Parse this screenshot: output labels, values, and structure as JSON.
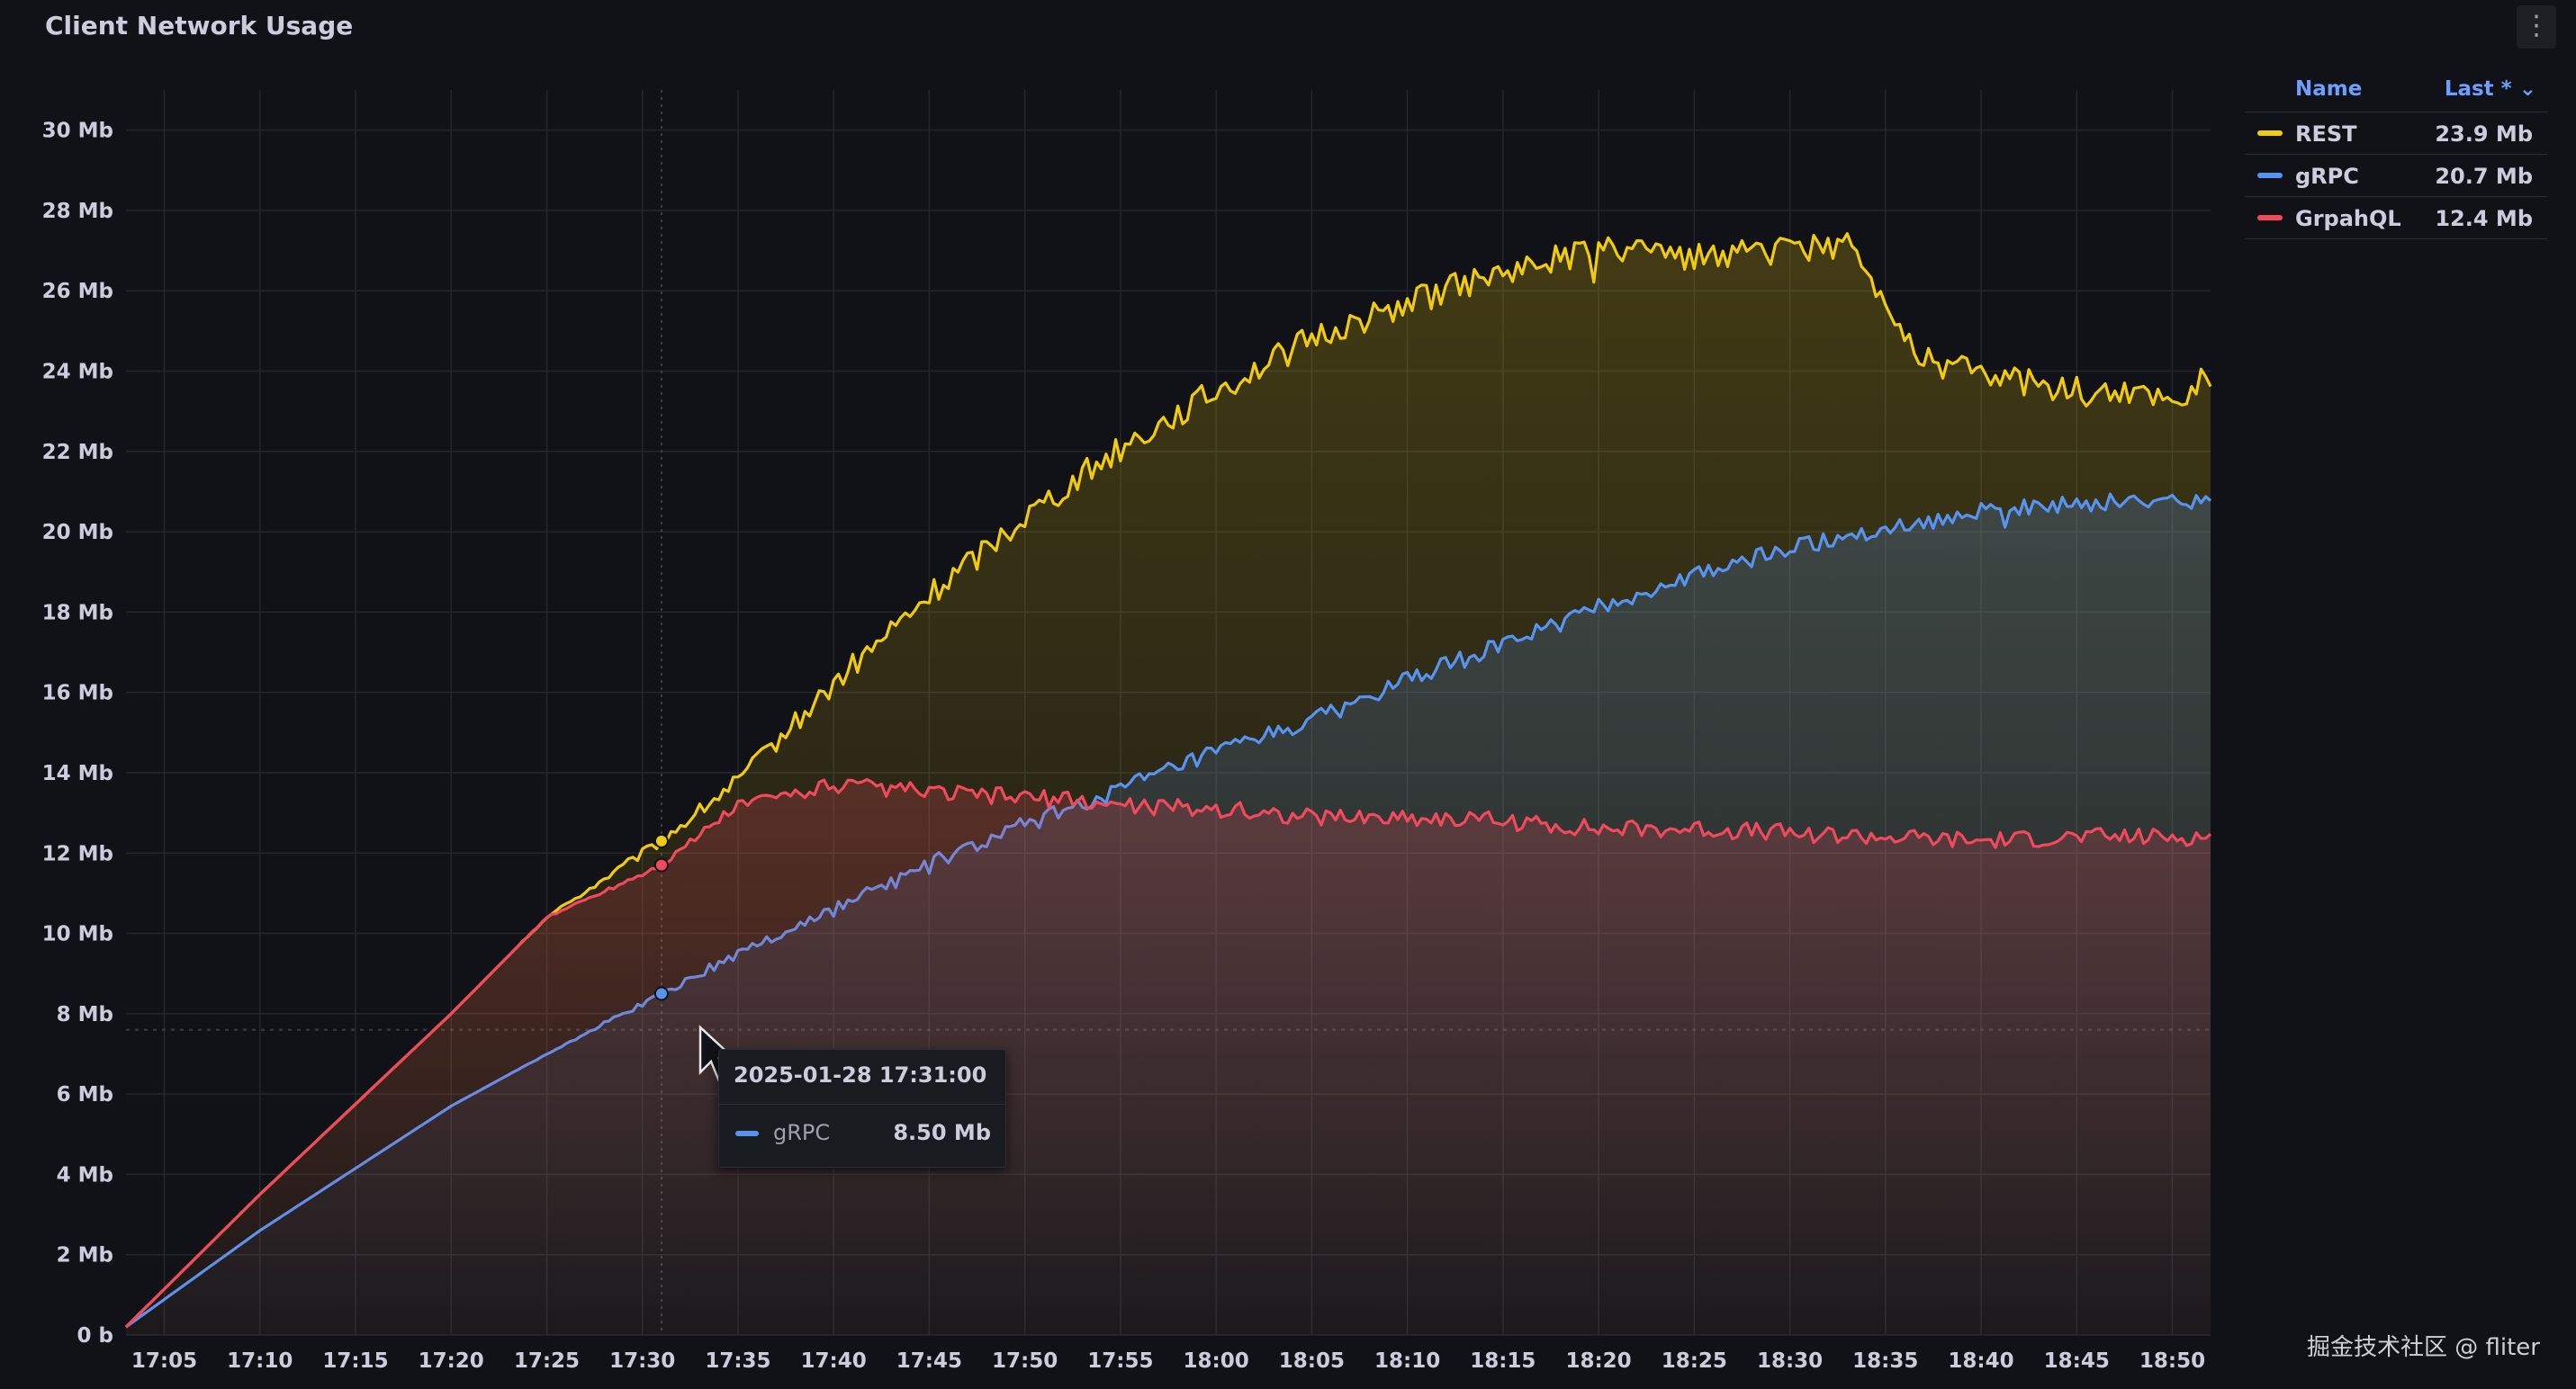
{
  "panel": {
    "title": "Client Network Usage",
    "menu_icon": "kebab-menu-icon",
    "menu_glyph": "⋮"
  },
  "legend": {
    "header_name": "Name",
    "header_last": "Last * ⌄",
    "items": [
      {
        "name": "REST",
        "value": "23.9 Mb",
        "color": "#f2cc0c"
      },
      {
        "name": "gRPC",
        "value": "20.7 Mb",
        "color": "#5794f2"
      },
      {
        "name": "GrpahQL",
        "value": "12.4 Mb",
        "color": "#f2495c"
      }
    ]
  },
  "tooltip": {
    "time": "2025-01-28 17:31:00",
    "series": "gRPC",
    "value": "8.50 Mb",
    "color": "#5794f2"
  },
  "watermark": "掘金技术社区 @ fliter",
  "chart_data": {
    "type": "line",
    "title": "Client Network Usage",
    "x_unit": "time (HH:MM), 2025-01-28",
    "x_ticks": [
      "17:05",
      "17:10",
      "17:15",
      "17:20",
      "17:25",
      "17:30",
      "17:35",
      "17:40",
      "17:45",
      "17:50",
      "17:55",
      "18:00",
      "18:05",
      "18:10",
      "18:15",
      "18:20",
      "18:25",
      "18:30",
      "18:35",
      "18:40",
      "18:45",
      "18:50"
    ],
    "xlim": [
      "17:03",
      "18:52"
    ],
    "y_ticks": [
      "0 b",
      "2 Mb",
      "4 Mb",
      "6 Mb",
      "8 Mb",
      "10 Mb",
      "12 Mb",
      "14 Mb",
      "16 Mb",
      "18 Mb",
      "20 Mb",
      "22 Mb",
      "24 Mb",
      "26 Mb",
      "28 Mb",
      "30 Mb"
    ],
    "ylim": [
      0,
      31
    ],
    "y_unit": "Mb",
    "grid": true,
    "legend_position": "right",
    "hover_time": "17:31",
    "threshold_y": 7.6,
    "series": [
      {
        "name": "REST",
        "color": "#f2cc0c",
        "x": [
          "17:03",
          "17:10",
          "17:20",
          "17:25",
          "17:31",
          "17:35",
          "17:40",
          "17:45",
          "17:50",
          "17:55",
          "18:00",
          "18:05",
          "18:10",
          "18:15",
          "18:20",
          "18:25",
          "18:30",
          "18:33",
          "18:35",
          "18:37",
          "18:40",
          "18:45",
          "18:50",
          "18:52"
        ],
        "values": [
          0.2,
          3.5,
          8.0,
          10.4,
          12.3,
          13.8,
          16.2,
          18.4,
          20.4,
          22.1,
          23.5,
          24.8,
          25.7,
          26.5,
          27.0,
          26.8,
          27.0,
          27.2,
          25.8,
          24.3,
          23.9,
          23.5,
          23.3,
          23.9
        ]
      },
      {
        "name": "gRPC",
        "color": "#5794f2",
        "x": [
          "17:03",
          "17:10",
          "17:20",
          "17:25",
          "17:31",
          "17:35",
          "17:40",
          "17:45",
          "17:50",
          "17:55",
          "18:00",
          "18:05",
          "18:10",
          "18:15",
          "18:20",
          "18:25",
          "18:30",
          "18:35",
          "18:40",
          "18:45",
          "18:50",
          "18:52"
        ],
        "values": [
          0.2,
          2.6,
          5.7,
          7.0,
          8.5,
          9.5,
          10.6,
          11.7,
          12.7,
          13.6,
          14.5,
          15.3,
          16.3,
          17.2,
          18.1,
          18.9,
          19.6,
          20.1,
          20.5,
          20.7,
          20.8,
          20.7
        ]
      },
      {
        "name": "GrpahQL",
        "color": "#f2495c",
        "x": [
          "17:03",
          "17:10",
          "17:20",
          "17:25",
          "17:31",
          "17:35",
          "17:40",
          "17:45",
          "17:50",
          "17:55",
          "18:00",
          "18:05",
          "18:10",
          "18:15",
          "18:20",
          "18:25",
          "18:30",
          "18:35",
          "18:40",
          "18:45",
          "18:50",
          "18:52"
        ],
        "values": [
          0.2,
          3.5,
          8.0,
          10.4,
          11.7,
          13.2,
          13.7,
          13.5,
          13.4,
          13.2,
          13.1,
          12.9,
          12.9,
          12.8,
          12.6,
          12.6,
          12.5,
          12.4,
          12.3,
          12.4,
          12.4,
          12.4
        ]
      }
    ]
  }
}
